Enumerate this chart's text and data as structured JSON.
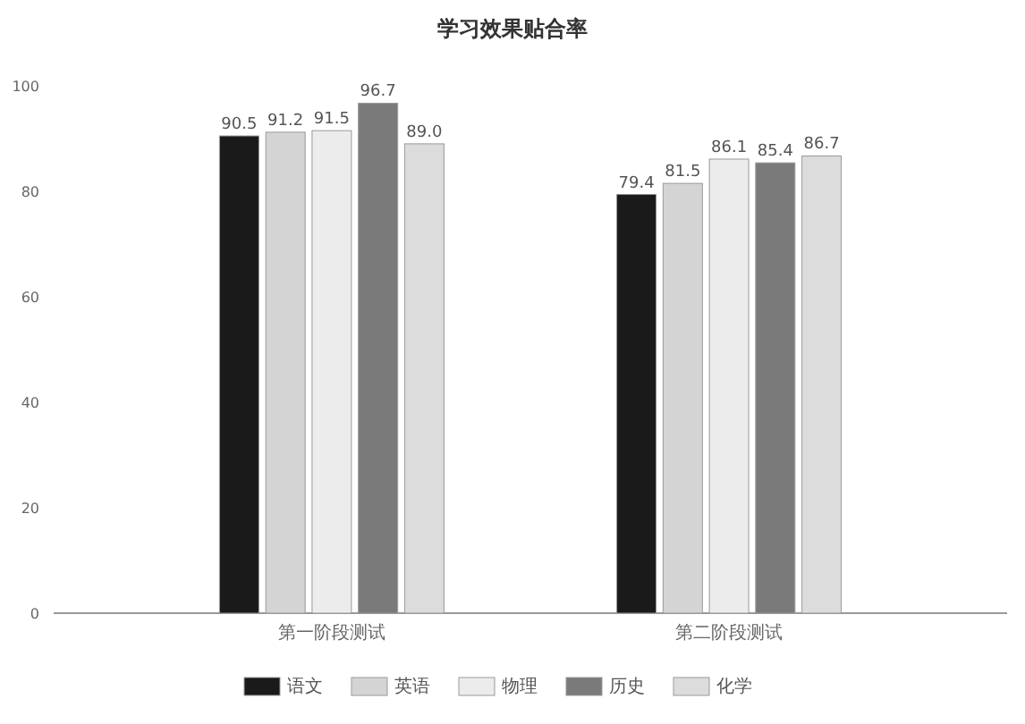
{
  "chart_data": {
    "type": "bar",
    "title": "学习效果贴合率",
    "categories": [
      "第一阶段测试",
      "第二阶段测试"
    ],
    "series": [
      {
        "name": "语文",
        "color": "#1a1a1a",
        "values": [
          90.5,
          79.4
        ]
      },
      {
        "name": "英语",
        "color": "#d4d4d4",
        "values": [
          91.2,
          81.5
        ]
      },
      {
        "name": "物理",
        "color": "#ececec",
        "values": [
          91.5,
          86.1
        ]
      },
      {
        "name": "历史",
        "color": "#7a7a7a",
        "values": [
          96.7,
          85.4
        ]
      },
      {
        "name": "化学",
        "color": "#dcdcdc",
        "values": [
          89.0,
          86.7
        ],
        "value_labels": [
          "89.0",
          "86.7"
        ]
      }
    ],
    "ylim": [
      0,
      100
    ],
    "yticks": [
      0,
      20,
      40,
      60,
      80,
      100
    ],
    "grid": false,
    "legend": "bottom",
    "data_labels": true
  }
}
